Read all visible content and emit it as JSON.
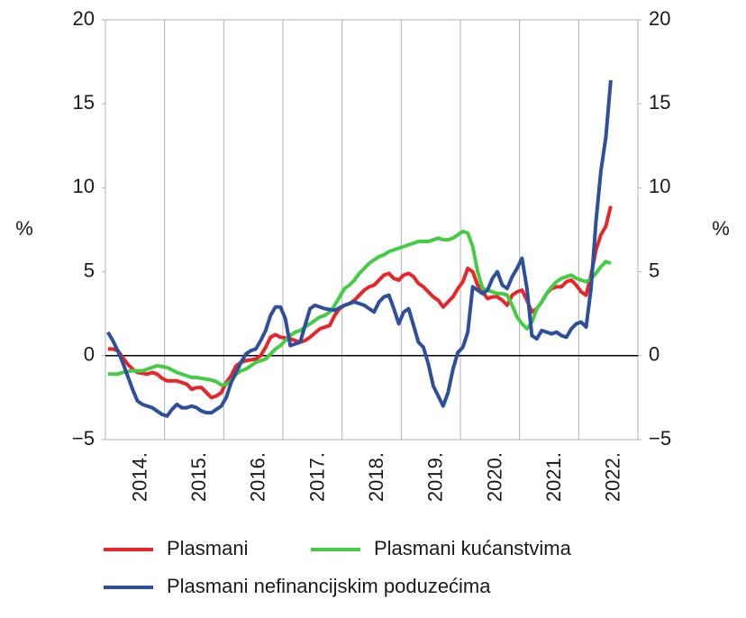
{
  "chart_data": {
    "type": "line",
    "y_label": "%",
    "y2_label": "%",
    "categories": [
      null,
      null,
      null,
      null,
      null,
      null,
      "2014.",
      null,
      null,
      null,
      null,
      null,
      null,
      null,
      null,
      null,
      null,
      null,
      "2015.",
      null,
      null,
      null,
      null,
      null,
      null,
      null,
      null,
      null,
      null,
      null,
      "2016.",
      null,
      null,
      null,
      null,
      null,
      null,
      null,
      null,
      null,
      null,
      null,
      "2017.",
      null,
      null,
      null,
      null,
      null,
      null,
      null,
      null,
      null,
      null,
      null,
      "2018.",
      null,
      null,
      null,
      null,
      null,
      null,
      null,
      null,
      null,
      null,
      null,
      "2019.",
      null,
      null,
      null,
      null,
      null,
      null,
      null,
      null,
      null,
      null,
      null,
      "2020.",
      null,
      null,
      null,
      null,
      null,
      null,
      null,
      null,
      null,
      null,
      null,
      "2021.",
      null,
      null,
      null,
      null,
      null,
      null,
      null,
      null,
      null,
      null,
      null,
      "2022."
    ],
    "series": [
      {
        "name": "Plasmani",
        "color": "#e8262a",
        "values": [
          0.4,
          0.4,
          0.3,
          -0.1,
          -0.5,
          -0.8,
          -1.0,
          -1.05,
          -1.1,
          -1.0,
          -1.1,
          -1.35,
          -1.5,
          -1.5,
          -1.5,
          -1.6,
          -1.7,
          -2.0,
          -1.9,
          -1.9,
          -2.2,
          -2.5,
          -2.4,
          -2.2,
          -1.6,
          -1.2,
          -0.6,
          -0.4,
          -0.3,
          -0.25,
          -0.2,
          0.0,
          0.5,
          1.1,
          1.25,
          1.1,
          1.05,
          1.0,
          0.9,
          0.8,
          0.9,
          1.1,
          1.35,
          1.6,
          1.7,
          1.8,
          2.4,
          2.8,
          3.0,
          3.1,
          3.3,
          3.6,
          3.9,
          4.1,
          4.2,
          4.5,
          4.8,
          4.9,
          4.6,
          4.5,
          4.8,
          4.9,
          4.7,
          4.3,
          4.1,
          3.8,
          3.5,
          3.3,
          2.9,
          3.2,
          3.5,
          4.0,
          4.4,
          5.2,
          5.0,
          4.2,
          3.8,
          3.4,
          3.5,
          3.5,
          3.3,
          3.0,
          3.6,
          3.8,
          3.9,
          3.3,
          2.6,
          2.8,
          3.2,
          3.7,
          4.0,
          4.1,
          4.1,
          4.4,
          4.5,
          4.2,
          3.8,
          3.6,
          4.8,
          6.3,
          7.2,
          7.7,
          8.9
        ]
      },
      {
        "name": "Plasmani kućanstvima",
        "color": "#45cc45",
        "values": [
          -1.1,
          -1.1,
          -1.1,
          -1.0,
          -0.95,
          -0.9,
          -0.9,
          -0.9,
          -0.8,
          -0.7,
          -0.6,
          -0.65,
          -0.7,
          -0.85,
          -1.0,
          -1.1,
          -1.2,
          -1.3,
          -1.3,
          -1.35,
          -1.4,
          -1.45,
          -1.55,
          -1.75,
          -1.7,
          -1.5,
          -1.1,
          -0.9,
          -0.8,
          -0.6,
          -0.4,
          -0.3,
          -0.2,
          0.1,
          0.4,
          0.6,
          0.9,
          1.2,
          1.4,
          1.5,
          1.7,
          1.9,
          2.1,
          2.3,
          2.4,
          2.6,
          3.0,
          3.5,
          4.0,
          4.2,
          4.5,
          4.9,
          5.2,
          5.5,
          5.7,
          5.9,
          6.0,
          6.2,
          6.3,
          6.4,
          6.5,
          6.6,
          6.7,
          6.8,
          6.8,
          6.8,
          6.9,
          7.0,
          6.9,
          6.9,
          7.0,
          7.2,
          7.4,
          7.3,
          6.5,
          5.0,
          4.0,
          3.9,
          3.8,
          3.7,
          3.7,
          3.6,
          3.0,
          2.3,
          1.9,
          1.6,
          2.0,
          2.8,
          3.2,
          3.7,
          4.1,
          4.4,
          4.6,
          4.7,
          4.8,
          4.6,
          4.5,
          4.4,
          4.6,
          4.9,
          5.3,
          5.6,
          5.5
        ]
      },
      {
        "name": "Plasmani nefinancijskim poduzećima",
        "color": "#2e4f9c",
        "values": [
          1.4,
          0.9,
          0.3,
          -0.4,
          -1.2,
          -2.0,
          -2.7,
          -2.9,
          -3.0,
          -3.1,
          -3.3,
          -3.5,
          -3.6,
          -3.2,
          -2.9,
          -3.1,
          -3.1,
          -3.0,
          -3.1,
          -3.3,
          -3.4,
          -3.4,
          -3.2,
          -3.0,
          -2.5,
          -1.6,
          -1.0,
          -0.4,
          0.1,
          0.3,
          0.4,
          0.9,
          1.5,
          2.4,
          2.9,
          2.9,
          2.2,
          0.6,
          0.7,
          0.8,
          1.8,
          2.8,
          3.0,
          2.9,
          2.8,
          2.75,
          2.7,
          2.85,
          3.0,
          3.1,
          3.2,
          3.1,
          3.0,
          2.8,
          2.6,
          3.2,
          3.5,
          3.6,
          2.8,
          1.9,
          2.6,
          2.8,
          1.8,
          0.8,
          0.5,
          -0.5,
          -1.8,
          -2.4,
          -3.0,
          -2.2,
          -0.8,
          0.2,
          0.5,
          1.4,
          4.1,
          3.9,
          3.7,
          3.9,
          4.6,
          5.0,
          4.2,
          4.0,
          4.7,
          5.2,
          5.8,
          4.0,
          1.2,
          1.0,
          1.5,
          1.4,
          1.3,
          1.4,
          1.2,
          1.1,
          1.6,
          1.9,
          2.0,
          1.7,
          4.0,
          8.0,
          11.0,
          13.0,
          16.4
        ]
      }
    ],
    "ylim": [
      -5,
      20
    ],
    "yticks": [
      {
        "value": -5,
        "label": "−5"
      },
      0,
      5,
      10,
      15,
      20
    ],
    "y2lim": [
      -5,
      20
    ],
    "y2ticks": [
      {
        "value": -5,
        "label": "−5"
      },
      0,
      5,
      10,
      15,
      20
    ],
    "x_grid": true,
    "legend": "bottom"
  }
}
